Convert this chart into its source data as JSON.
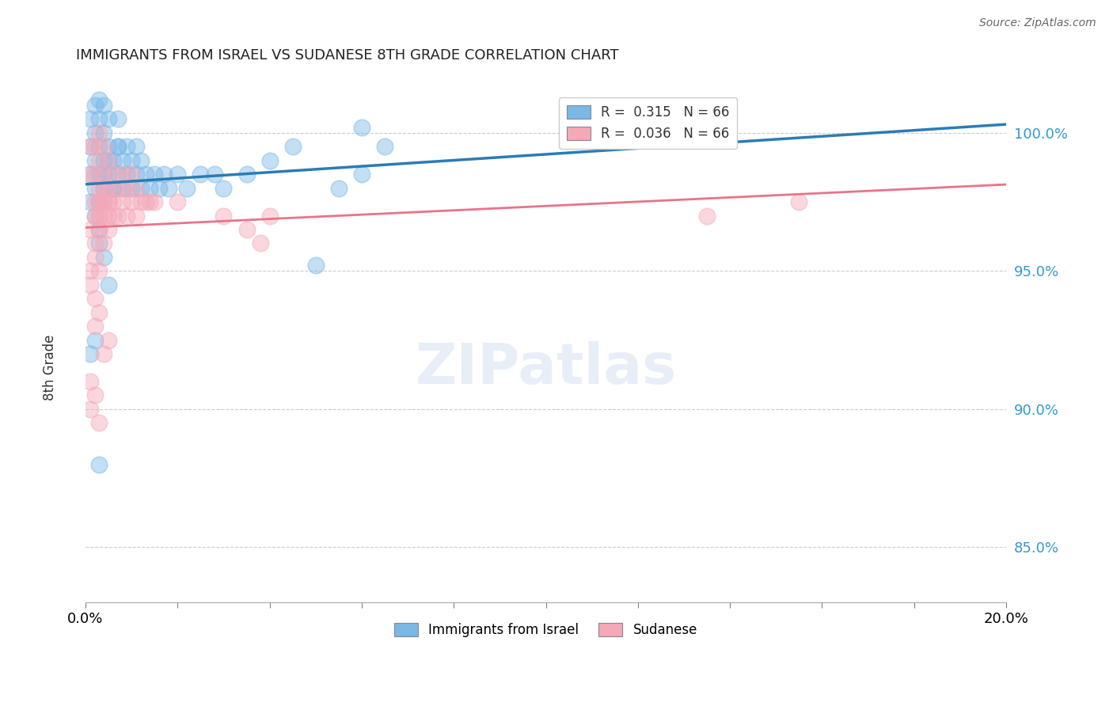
{
  "title": "IMMIGRANTS FROM ISRAEL VS SUDANESE 8TH GRADE CORRELATION CHART",
  "source": "Source: ZipAtlas.com",
  "ylabel": "8th Grade",
  "y_ticks": [
    85.0,
    90.0,
    95.0,
    100.0
  ],
  "y_tick_labels": [
    "85.0%",
    "90.0%",
    "95.0%",
    "100.0%"
  ],
  "xlim": [
    0.0,
    0.2
  ],
  "ylim": [
    83.0,
    101.8
  ],
  "legend_blue_R": "0.315",
  "legend_blue_N": "66",
  "legend_pink_R": "0.036",
  "legend_pink_N": "66",
  "blue_color": "#7ab8e8",
  "pink_color": "#f4a8b8",
  "line_blue_color": "#2c7bb6",
  "line_pink_color": "#e8748a",
  "israel_x": [
    0.001,
    0.001,
    0.002,
    0.002,
    0.002,
    0.003,
    0.003,
    0.003,
    0.003,
    0.004,
    0.004,
    0.004,
    0.004,
    0.005,
    0.005,
    0.005,
    0.006,
    0.006,
    0.007,
    0.007,
    0.007,
    0.008,
    0.008,
    0.009,
    0.009,
    0.01,
    0.01,
    0.011,
    0.011,
    0.012,
    0.012,
    0.013,
    0.014,
    0.015,
    0.016,
    0.017,
    0.018,
    0.02,
    0.022,
    0.025,
    0.028,
    0.03,
    0.035,
    0.04,
    0.045,
    0.05,
    0.055,
    0.06,
    0.065,
    0.003,
    0.004,
    0.005,
    0.006,
    0.007,
    0.001,
    0.002,
    0.003,
    0.001,
    0.002,
    0.003,
    0.004,
    0.005,
    0.002,
    0.001,
    0.003,
    0.06
  ],
  "israel_y": [
    99.5,
    100.5,
    99.0,
    100.0,
    101.0,
    98.5,
    99.5,
    100.5,
    101.2,
    98.0,
    99.0,
    100.0,
    101.0,
    98.5,
    99.5,
    100.5,
    98.0,
    99.0,
    98.5,
    99.5,
    100.5,
    98.0,
    99.0,
    98.5,
    99.5,
    98.0,
    99.0,
    98.5,
    99.5,
    98.0,
    99.0,
    98.5,
    98.0,
    98.5,
    98.0,
    98.5,
    98.0,
    98.5,
    98.0,
    98.5,
    98.5,
    98.0,
    98.5,
    99.0,
    99.5,
    95.2,
    98.0,
    98.5,
    99.5,
    97.5,
    98.5,
    99.0,
    98.0,
    99.5,
    97.5,
    98.0,
    96.5,
    98.5,
    97.0,
    96.0,
    95.5,
    94.5,
    92.5,
    92.0,
    88.0,
    100.2
  ],
  "sudanese_x": [
    0.001,
    0.001,
    0.002,
    0.002,
    0.002,
    0.003,
    0.003,
    0.003,
    0.003,
    0.004,
    0.004,
    0.004,
    0.005,
    0.005,
    0.005,
    0.006,
    0.006,
    0.007,
    0.007,
    0.008,
    0.008,
    0.009,
    0.009,
    0.01,
    0.01,
    0.011,
    0.011,
    0.012,
    0.013,
    0.014,
    0.015,
    0.001,
    0.002,
    0.003,
    0.004,
    0.005,
    0.001,
    0.002,
    0.003,
    0.001,
    0.002,
    0.002,
    0.003,
    0.004,
    0.005,
    0.001,
    0.001,
    0.002,
    0.003,
    0.02,
    0.03,
    0.035,
    0.038,
    0.04,
    0.003,
    0.004,
    0.005,
    0.003,
    0.004,
    0.002,
    0.003,
    0.004,
    0.005,
    0.006,
    0.155,
    0.135
  ],
  "sudanese_y": [
    98.5,
    99.5,
    97.5,
    98.5,
    99.5,
    97.0,
    98.0,
    99.0,
    100.0,
    97.5,
    98.5,
    99.5,
    97.0,
    98.0,
    99.0,
    97.5,
    98.5,
    97.0,
    98.0,
    97.5,
    98.5,
    97.0,
    98.0,
    97.5,
    98.5,
    97.0,
    98.0,
    97.5,
    97.5,
    97.5,
    97.5,
    96.5,
    96.0,
    96.5,
    96.0,
    96.5,
    95.0,
    95.5,
    95.0,
    94.5,
    94.0,
    93.0,
    93.5,
    92.0,
    92.5,
    91.0,
    90.0,
    90.5,
    89.5,
    97.5,
    97.0,
    96.5,
    96.0,
    97.0,
    97.5,
    98.0,
    97.5,
    97.0,
    97.5,
    97.0,
    97.5,
    97.0,
    97.5,
    97.0,
    97.5,
    97.0
  ]
}
